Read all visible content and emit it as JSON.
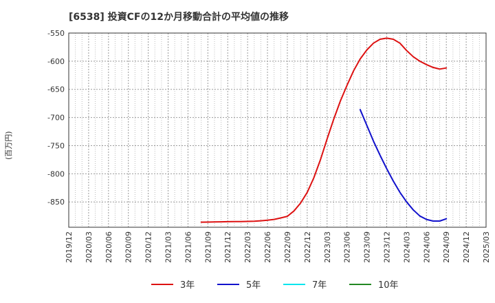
{
  "chart_data": {
    "type": "line",
    "title": "[6538]  投資CFの12か月移動合計の平均値の推移",
    "ylabel": "(百万円)",
    "xlabel": "",
    "ylim": [
      -895,
      -550
    ],
    "y_ticks": [
      -550,
      -600,
      -650,
      -700,
      -750,
      -800,
      -850
    ],
    "x_ticks": [
      "2019/12",
      "2020/03",
      "2020/06",
      "2020/09",
      "2020/12",
      "2021/03",
      "2021/06",
      "2021/09",
      "2021/12",
      "2022/03",
      "2022/06",
      "2022/09",
      "2022/12",
      "2023/03",
      "2023/06",
      "2023/09",
      "2023/12",
      "2024/03",
      "2024/06",
      "2024/09",
      "2024/12",
      "2025/03"
    ],
    "grid": true,
    "legend_position": "bottom",
    "series": [
      {
        "name": "3年",
        "color": "#dd1111",
        "x": [
          "2021/08",
          "2021/09",
          "2021/10",
          "2021/11",
          "2021/12",
          "2022/01",
          "2022/02",
          "2022/03",
          "2022/04",
          "2022/05",
          "2022/06",
          "2022/07",
          "2022/08",
          "2022/09",
          "2022/10",
          "2022/11",
          "2022/12",
          "2023/01",
          "2023/02",
          "2023/03",
          "2023/04",
          "2023/05",
          "2023/06",
          "2023/07",
          "2023/08",
          "2023/09",
          "2023/10",
          "2023/11",
          "2023/12",
          "2024/01",
          "2024/02",
          "2024/03",
          "2024/04",
          "2024/05",
          "2024/06",
          "2024/07",
          "2024/08",
          "2024/09"
        ],
        "values": [
          -886,
          -885.8,
          -885.5,
          -885.3,
          -885.1,
          -885,
          -884.8,
          -884.6,
          -884.3,
          -883.5,
          -882.5,
          -881,
          -878.5,
          -875.5,
          -866,
          -852,
          -833,
          -807,
          -775,
          -738,
          -703,
          -671,
          -643,
          -617,
          -596,
          -580,
          -568,
          -561,
          -559,
          -561,
          -568,
          -581,
          -592,
          -600,
          -606,
          -611,
          -614,
          -612
        ]
      },
      {
        "name": "5年",
        "color": "#1111cc",
        "x": [
          "2023/08",
          "2023/09",
          "2023/10",
          "2023/11",
          "2023/12",
          "2024/01",
          "2024/02",
          "2024/03",
          "2024/04",
          "2024/05",
          "2024/06",
          "2024/07",
          "2024/08",
          "2024/09"
        ],
        "values": [
          -686,
          -714,
          -742,
          -767,
          -791,
          -813,
          -833,
          -850,
          -864,
          -875,
          -881,
          -884,
          -884,
          -880
        ]
      },
      {
        "name": "7年",
        "color": "#00e5ee",
        "x": [],
        "values": []
      },
      {
        "name": "10年",
        "color": "#228822",
        "x": [],
        "values": []
      }
    ]
  }
}
